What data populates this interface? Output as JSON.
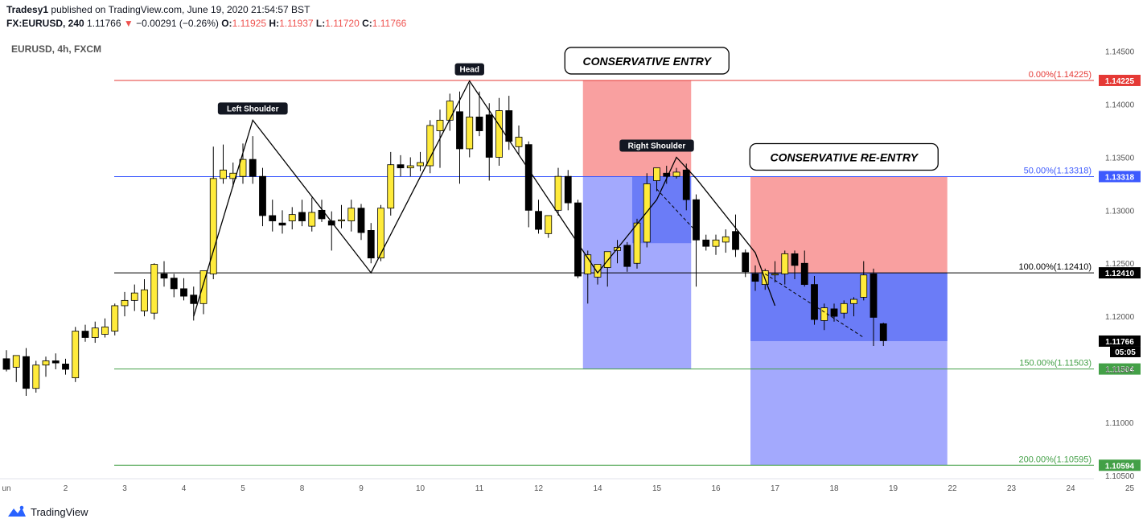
{
  "header": {
    "author": "Tradesy1",
    "published_text": "published on TradingView.com, June 19, 2020 21:54:57 BST",
    "symbol_interval": "FX:EURUSD, 240",
    "last": "1.11766",
    "change": "−0.00291 (−0.26%)",
    "open_label": "O:",
    "open": "1.11925",
    "high_label": "H:",
    "high": "1.11937",
    "low_label": "L:",
    "low": "1.11720",
    "close_label": "C:",
    "close": "1.11766",
    "down_arrow": "▼"
  },
  "symbol_line": "EURUSD, 4h, FXCM",
  "brand": {
    "name": "TradingView",
    "icon": "tradingview-logo-icon"
  },
  "colors": {
    "bull_body": "#ffeb3b",
    "bear_body": "#000000",
    "wick": "#000000",
    "stop_zone": "#f9a0a0",
    "target_zone": "#a3a9fd",
    "target_zone_dark": "#6b7cf7",
    "fib_0": "#e53935",
    "fib_50": "#3d5afe",
    "fib_100": "#000000",
    "fib_150": "#43a047",
    "fib_200": "#43a047"
  },
  "chart_data": {
    "type": "candlestick",
    "title": "",
    "xlabel": "",
    "ylabel": "",
    "ylim": [
      1.1043,
      1.1468
    ],
    "x_ticks": [
      {
        "label": "un",
        "i": 0
      },
      {
        "label": "2",
        "i": 6
      },
      {
        "label": "3",
        "i": 12
      },
      {
        "label": "4",
        "i": 18
      },
      {
        "label": "5",
        "i": 24
      },
      {
        "label": "8",
        "i": 30
      },
      {
        "label": "9",
        "i": 36
      },
      {
        "label": "10",
        "i": 42
      },
      {
        "label": "11",
        "i": 48
      },
      {
        "label": "12",
        "i": 54
      },
      {
        "label": "14",
        "i": 60
      },
      {
        "label": "15",
        "i": 66
      },
      {
        "label": "16",
        "i": 72
      },
      {
        "label": "17",
        "i": 78
      },
      {
        "label": "18",
        "i": 84
      },
      {
        "label": "19",
        "i": 90
      },
      {
        "label": "22",
        "i": 96
      },
      {
        "label": "23",
        "i": 102
      },
      {
        "label": "24",
        "i": 108
      },
      {
        "label": "25",
        "i": 114
      }
    ],
    "y_ticks": [
      "1.14500",
      "1.14000",
      "1.13500",
      "1.13000",
      "1.12500",
      "1.12000",
      "1.11500",
      "1.11000",
      "1.10500"
    ],
    "candles": [
      {
        "o": 1.116,
        "h": 1.1168,
        "l": 1.1148,
        "c": 1.115
      },
      {
        "o": 1.1152,
        "h": 1.1163,
        "l": 1.1138,
        "c": 1.1163
      },
      {
        "o": 1.1162,
        "h": 1.117,
        "l": 1.1125,
        "c": 1.1132
      },
      {
        "o": 1.1132,
        "h": 1.1158,
        "l": 1.1128,
        "c": 1.1154
      },
      {
        "o": 1.1154,
        "h": 1.1162,
        "l": 1.1143,
        "c": 1.1158
      },
      {
        "o": 1.1158,
        "h": 1.1165,
        "l": 1.115,
        "c": 1.1156
      },
      {
        "o": 1.1155,
        "h": 1.116,
        "l": 1.1145,
        "c": 1.115
      },
      {
        "o": 1.1142,
        "h": 1.119,
        "l": 1.1138,
        "c": 1.1186
      },
      {
        "o": 1.1186,
        "h": 1.1192,
        "l": 1.1176,
        "c": 1.118
      },
      {
        "o": 1.118,
        "h": 1.1195,
        "l": 1.1175,
        "c": 1.1189
      },
      {
        "o": 1.1183,
        "h": 1.1198,
        "l": 1.118,
        "c": 1.119
      },
      {
        "o": 1.1186,
        "h": 1.1212,
        "l": 1.1182,
        "c": 1.121
      },
      {
        "o": 1.121,
        "h": 1.1223,
        "l": 1.12,
        "c": 1.1215
      },
      {
        "o": 1.1215,
        "h": 1.123,
        "l": 1.1205,
        "c": 1.1222
      },
      {
        "o": 1.1205,
        "h": 1.1235,
        "l": 1.12,
        "c": 1.1225
      },
      {
        "o": 1.1203,
        "h": 1.125,
        "l": 1.1197,
        "c": 1.1249
      },
      {
        "o": 1.124,
        "h": 1.1252,
        "l": 1.1228,
        "c": 1.1236
      },
      {
        "o": 1.1236,
        "h": 1.124,
        "l": 1.1218,
        "c": 1.1226
      },
      {
        "o": 1.1226,
        "h": 1.1236,
        "l": 1.1215,
        "c": 1.1219
      },
      {
        "o": 1.122,
        "h": 1.1228,
        "l": 1.1196,
        "c": 1.1212
      },
      {
        "o": 1.1212,
        "h": 1.1243,
        "l": 1.1202,
        "c": 1.1243
      },
      {
        "o": 1.124,
        "h": 1.136,
        "l": 1.1235,
        "c": 1.133
      },
      {
        "o": 1.133,
        "h": 1.1362,
        "l": 1.1325,
        "c": 1.1338
      },
      {
        "o": 1.133,
        "h": 1.1345,
        "l": 1.1322,
        "c": 1.1335
      },
      {
        "o": 1.1332,
        "h": 1.1363,
        "l": 1.1325,
        "c": 1.1348
      },
      {
        "o": 1.1348,
        "h": 1.137,
        "l": 1.1325,
        "c": 1.1332
      },
      {
        "o": 1.1332,
        "h": 1.134,
        "l": 1.1285,
        "c": 1.1295
      },
      {
        "o": 1.1295,
        "h": 1.131,
        "l": 1.128,
        "c": 1.129
      },
      {
        "o": 1.1288,
        "h": 1.13,
        "l": 1.1278,
        "c": 1.1286
      },
      {
        "o": 1.129,
        "h": 1.1303,
        "l": 1.1282,
        "c": 1.1296
      },
      {
        "o": 1.1298,
        "h": 1.131,
        "l": 1.1285,
        "c": 1.129
      },
      {
        "o": 1.1285,
        "h": 1.1312,
        "l": 1.128,
        "c": 1.1298
      },
      {
        "o": 1.13,
        "h": 1.131,
        "l": 1.1289,
        "c": 1.1292
      },
      {
        "o": 1.129,
        "h": 1.1299,
        "l": 1.1262,
        "c": 1.1286
      },
      {
        "o": 1.129,
        "h": 1.1305,
        "l": 1.1283,
        "c": 1.1291
      },
      {
        "o": 1.129,
        "h": 1.131,
        "l": 1.128,
        "c": 1.1302
      },
      {
        "o": 1.1302,
        "h": 1.1306,
        "l": 1.1272,
        "c": 1.1279
      },
      {
        "o": 1.1281,
        "h": 1.1288,
        "l": 1.125,
        "c": 1.1255
      },
      {
        "o": 1.1255,
        "h": 1.1305,
        "l": 1.1252,
        "c": 1.1302
      },
      {
        "o": 1.1302,
        "h": 1.1355,
        "l": 1.1295,
        "c": 1.1343
      },
      {
        "o": 1.1343,
        "h": 1.1352,
        "l": 1.1332,
        "c": 1.134
      },
      {
        "o": 1.134,
        "h": 1.135,
        "l": 1.1332,
        "c": 1.1342
      },
      {
        "o": 1.1342,
        "h": 1.1355,
        "l": 1.1337,
        "c": 1.1345
      },
      {
        "o": 1.1342,
        "h": 1.1385,
        "l": 1.1335,
        "c": 1.138
      },
      {
        "o": 1.1375,
        "h": 1.1395,
        "l": 1.134,
        "c": 1.1385
      },
      {
        "o": 1.1385,
        "h": 1.141,
        "l": 1.1375,
        "c": 1.1403
      },
      {
        "o": 1.1393,
        "h": 1.1412,
        "l": 1.1325,
        "c": 1.1358
      },
      {
        "o": 1.1358,
        "h": 1.142,
        "l": 1.135,
        "c": 1.1388
      },
      {
        "o": 1.1388,
        "h": 1.1412,
        "l": 1.137,
        "c": 1.1375
      },
      {
        "o": 1.139,
        "h": 1.1401,
        "l": 1.1328,
        "c": 1.135
      },
      {
        "o": 1.135,
        "h": 1.1406,
        "l": 1.1342,
        "c": 1.1394
      },
      {
        "o": 1.1394,
        "h": 1.1408,
        "l": 1.1357,
        "c": 1.1365
      },
      {
        "o": 1.136,
        "h": 1.138,
        "l": 1.1352,
        "c": 1.1369
      },
      {
        "o": 1.1362,
        "h": 1.1365,
        "l": 1.1284,
        "c": 1.13
      },
      {
        "o": 1.1299,
        "h": 1.131,
        "l": 1.1278,
        "c": 1.1282
      },
      {
        "o": 1.1278,
        "h": 1.1295,
        "l": 1.1274,
        "c": 1.1295
      },
      {
        "o": 1.13,
        "h": 1.134,
        "l": 1.1295,
        "c": 1.1332
      },
      {
        "o": 1.1332,
        "h": 1.1338,
        "l": 1.13,
        "c": 1.1307
      },
      {
        "o": 1.1307,
        "h": 1.131,
        "l": 1.1236,
        "c": 1.1238
      },
      {
        "o": 1.124,
        "h": 1.1262,
        "l": 1.1212,
        "c": 1.1258
      },
      {
        "o": 1.1237,
        "h": 1.1248,
        "l": 1.123,
        "c": 1.1249
      },
      {
        "o": 1.1246,
        "h": 1.1259,
        "l": 1.1228,
        "c": 1.1261
      },
      {
        "o": 1.1262,
        "h": 1.1272,
        "l": 1.125,
        "c": 1.1265
      },
      {
        "o": 1.1267,
        "h": 1.127,
        "l": 1.1242,
        "c": 1.1247
      },
      {
        "o": 1.125,
        "h": 1.1292,
        "l": 1.1245,
        "c": 1.1288
      },
      {
        "o": 1.127,
        "h": 1.1335,
        "l": 1.1265,
        "c": 1.1325
      },
      {
        "o": 1.1328,
        "h": 1.1339,
        "l": 1.1318,
        "c": 1.134
      },
      {
        "o": 1.1335,
        "h": 1.1342,
        "l": 1.1325,
        "c": 1.1332
      },
      {
        "o": 1.1332,
        "h": 1.134,
        "l": 1.133,
        "c": 1.1336
      },
      {
        "o": 1.1338,
        "h": 1.1344,
        "l": 1.13,
        "c": 1.131
      },
      {
        "o": 1.131,
        "h": 1.1315,
        "l": 1.1228,
        "c": 1.1272
      },
      {
        "o": 1.1272,
        "h": 1.1277,
        "l": 1.1262,
        "c": 1.1266
      },
      {
        "o": 1.1266,
        "h": 1.1277,
        "l": 1.1258,
        "c": 1.1272
      },
      {
        "o": 1.127,
        "h": 1.1282,
        "l": 1.126,
        "c": 1.1275
      },
      {
        "o": 1.128,
        "h": 1.1296,
        "l": 1.1256,
        "c": 1.1263
      },
      {
        "o": 1.126,
        "h": 1.1263,
        "l": 1.1237,
        "c": 1.1242
      },
      {
        "o": 1.124,
        "h": 1.1248,
        "l": 1.1224,
        "c": 1.1233
      },
      {
        "o": 1.123,
        "h": 1.1245,
        "l": 1.1225,
        "c": 1.1243
      },
      {
        "o": 1.1239,
        "h": 1.1252,
        "l": 1.1232,
        "c": 1.124
      },
      {
        "o": 1.124,
        "h": 1.1262,
        "l": 1.123,
        "c": 1.1259
      },
      {
        "o": 1.1259,
        "h": 1.1262,
        "l": 1.1235,
        "c": 1.1248
      },
      {
        "o": 1.125,
        "h": 1.1262,
        "l": 1.1228,
        "c": 1.123
      },
      {
        "o": 1.123,
        "h": 1.1238,
        "l": 1.1192,
        "c": 1.1197
      },
      {
        "o": 1.1196,
        "h": 1.1212,
        "l": 1.1187,
        "c": 1.1208
      },
      {
        "o": 1.1207,
        "h": 1.1212,
        "l": 1.1195,
        "c": 1.12
      },
      {
        "o": 1.1203,
        "h": 1.1215,
        "l": 1.1198,
        "c": 1.1212
      },
      {
        "o": 1.1212,
        "h": 1.1218,
        "l": 1.12,
        "c": 1.1216
      },
      {
        "o": 1.1218,
        "h": 1.1252,
        "l": 1.1215,
        "c": 1.1239
      },
      {
        "o": 1.124,
        "h": 1.1245,
        "l": 1.1172,
        "c": 1.1199
      },
      {
        "o": 1.1193,
        "h": 1.1194,
        "l": 1.1172,
        "c": 1.1177
      }
    ],
    "fib_levels": [
      {
        "label": "0.00%(1.14225)",
        "value": 1.14225,
        "tag": "1.14225",
        "color_key": "fib_0"
      },
      {
        "label": "50.00%(1.13318)",
        "value": 1.13318,
        "tag": "1.13318",
        "color_key": "fib_50"
      },
      {
        "label": "100.00%(1.12410)",
        "value": 1.1241,
        "tag": "1.12410",
        "color_key": "fib_100"
      },
      {
        "label": "150.00%(1.11503)",
        "value": 1.11503,
        "tag": "1.11504",
        "color_key": "fib_150"
      },
      {
        "label": "200.00%(1.10595)",
        "value": 1.10595,
        "tag": "1.10594",
        "color_key": "fib_200"
      }
    ],
    "last_price_tag": "1.11766",
    "countdown_tag": "05:05",
    "head_shoulders_line": [
      {
        "i": 19,
        "y": 1.12
      },
      {
        "i": 25,
        "y": 1.1385
      },
      {
        "i": 37,
        "y": 1.1241
      },
      {
        "i": 47,
        "y": 1.1422
      },
      {
        "i": 60,
        "y": 1.1241
      },
      {
        "i": 66,
        "y": 1.131
      },
      {
        "i": 68,
        "y": 1.135
      },
      {
        "i": 70,
        "y": 1.133
      },
      {
        "i": 76,
        "y": 1.126
      },
      {
        "i": 78,
        "y": 1.121
      }
    ],
    "dashed_lines": [
      [
        {
          "i": 66,
          "y": 1.132
        },
        {
          "i": 70,
          "y": 1.128
        }
      ],
      [
        {
          "i": 77,
          "y": 1.124
        },
        {
          "i": 87,
          "y": 1.118
        }
      ]
    ],
    "positions": [
      {
        "name": "conservative-entry-position",
        "i_start": 59,
        "i_end": 69,
        "entry": 1.13318,
        "stop": 1.14225,
        "target": 1.11503,
        "dark_i_start": 64,
        "dark_i_end": 69,
        "dark_bottom": 1.1269
      },
      {
        "name": "conservative-reentry-position",
        "i_start": 76,
        "i_end": 95,
        "entry": 1.1241,
        "stop": 1.13318,
        "target": 1.10595,
        "dark_i_start": 76,
        "dark_i_end": 95,
        "dark_bottom": 1.11766
      }
    ],
    "labels": [
      {
        "text": "Left Shoulder",
        "i": 25,
        "y": 1.1385,
        "style": "dark"
      },
      {
        "text": "Head",
        "i": 47,
        "y": 1.1422,
        "style": "dark"
      },
      {
        "text": "Right Shoulder",
        "i": 66,
        "y": 1.135,
        "style": "dark"
      },
      {
        "text": "CONSERVATIVE ENTRY",
        "i": 65,
        "y": 1.14225,
        "style": "callout"
      },
      {
        "text": "CONSERVATIVE RE-ENTRY",
        "i": 85,
        "y": 1.13318,
        "style": "callout"
      }
    ]
  }
}
